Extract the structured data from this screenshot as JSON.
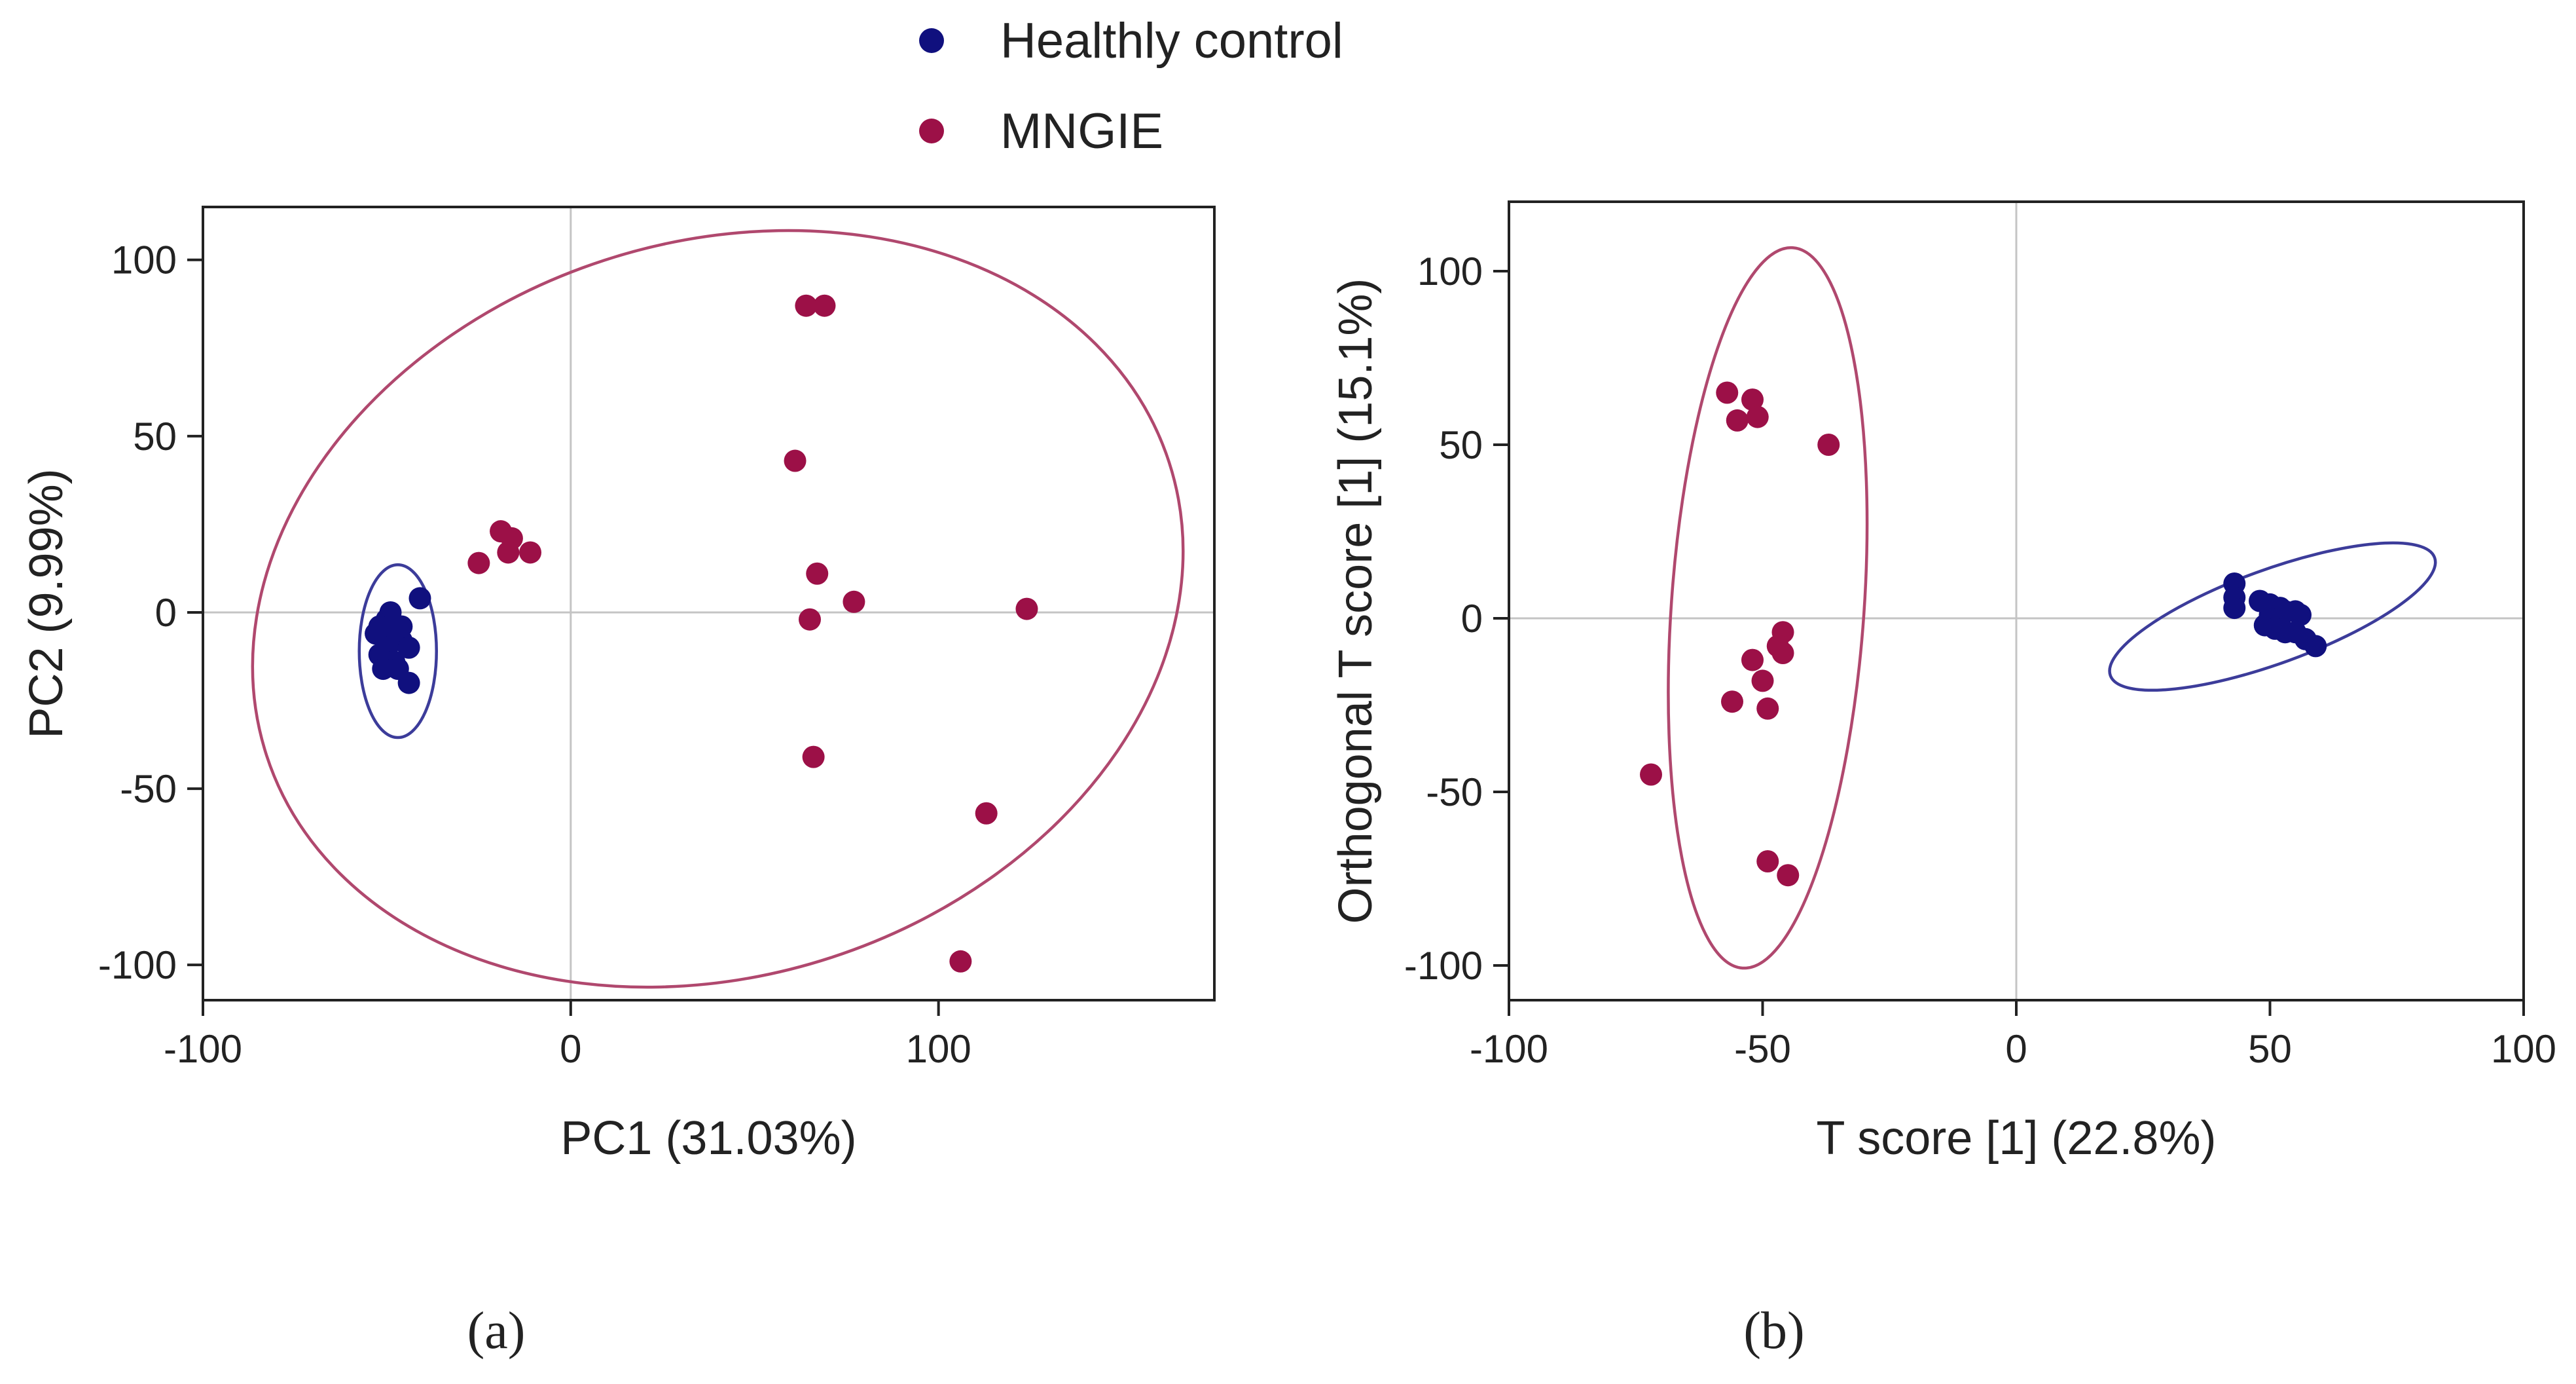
{
  "colors": {
    "healthy": "#10107e",
    "mngie": "#9c1047",
    "healthy_ellipse": "#3c3c9a",
    "mngie_ellipse": "#b0486e",
    "zero_line": "#c4c4c4",
    "frame": "#222222"
  },
  "legend": {
    "items": [
      {
        "label": "Healthly control",
        "group": "healthy"
      },
      {
        "label": "MNGIE",
        "group": "mngie"
      }
    ]
  },
  "panels": [
    {
      "label": "(a)"
    },
    {
      "label": "(b)"
    }
  ],
  "chart_data": [
    {
      "type": "scatter",
      "panel": "(a)",
      "xlabel": "PC1 (31.03%)",
      "ylabel": "PC2 (9.99%)",
      "xlim": [
        -100,
        175
      ],
      "ylim": [
        -110,
        115
      ],
      "xticks": [
        -100,
        0,
        100
      ],
      "yticks": [
        -100,
        -50,
        0,
        50,
        100
      ],
      "xtick_labels": [
        "-100",
        "0",
        "100"
      ],
      "ytick_labels": [
        "-100",
        "-50",
        "0",
        "50",
        "100"
      ],
      "series": [
        {
          "name": "Healthly control",
          "group": "healthy",
          "points": [
            [
              -50,
              -2
            ],
            [
              -48,
              -5
            ],
            [
              -53,
              -6
            ],
            [
              -46,
              -8
            ],
            [
              -50,
              -10
            ],
            [
              -44,
              -10
            ],
            [
              -52,
              -12
            ],
            [
              -48,
              -14
            ],
            [
              -51,
              -16
            ],
            [
              -47,
              -16
            ],
            [
              -44,
              -20
            ],
            [
              -41,
              4
            ],
            [
              -49,
              0
            ],
            [
              -46,
              -4
            ],
            [
              -52,
              -4
            ]
          ]
        },
        {
          "name": "MNGIE",
          "group": "mngie",
          "points": [
            [
              64,
              87
            ],
            [
              69,
              87
            ],
            [
              61,
              43
            ],
            [
              -19,
              23
            ],
            [
              -16,
              21
            ],
            [
              -11,
              17
            ],
            [
              -17,
              17
            ],
            [
              -25,
              14
            ],
            [
              67,
              11
            ],
            [
              77,
              3
            ],
            [
              124,
              1
            ],
            [
              65,
              -2
            ],
            [
              66,
              -41
            ],
            [
              113,
              -57
            ],
            [
              106,
              -99
            ]
          ]
        }
      ],
      "ellipses": [
        {
          "group": "healthy",
          "center": [
            -47,
            -11
          ],
          "semi_axes": [
            10.5,
            24.5
          ],
          "angle_deg": 0
        },
        {
          "group": "mngie",
          "center": [
            40,
            1
          ],
          "semi_axes": [
            129,
            104
          ],
          "angle_deg": -18
        }
      ]
    },
    {
      "type": "scatter",
      "panel": "(b)",
      "xlabel": "T score [1] (22.8%)",
      "ylabel": "Orthogonal T score [1] (15.1%)",
      "xlim": [
        -100,
        100
      ],
      "ylim": [
        -110,
        120
      ],
      "xticks": [
        -100,
        -50,
        0,
        50,
        100
      ],
      "yticks": [
        -100,
        -50,
        0,
        50,
        100
      ],
      "xtick_labels": [
        "-100",
        "-50",
        "0",
        "50",
        "100"
      ],
      "ytick_labels": [
        "-100",
        "-50",
        "0",
        "50",
        "100"
      ],
      "series": [
        {
          "name": "Healthly control",
          "group": "healthy",
          "points": [
            [
              43,
              10
            ],
            [
              43,
              6
            ],
            [
              43,
              3
            ],
            [
              48,
              5
            ],
            [
              50,
              4
            ],
            [
              52,
              3
            ],
            [
              53,
              2
            ],
            [
              55,
              2
            ],
            [
              56,
              1
            ],
            [
              50,
              1
            ],
            [
              52,
              0
            ],
            [
              49,
              -2
            ],
            [
              51,
              -3
            ],
            [
              53,
              -4
            ],
            [
              55,
              -4
            ],
            [
              57,
              -6
            ],
            [
              59,
              -8
            ]
          ]
        },
        {
          "name": "MNGIE",
          "group": "mngie",
          "points": [
            [
              -57,
              65
            ],
            [
              -52,
              63
            ],
            [
              -55,
              57
            ],
            [
              -51,
              58
            ],
            [
              -37,
              50
            ],
            [
              -46,
              -4
            ],
            [
              -47,
              -8
            ],
            [
              -46,
              -10
            ],
            [
              -52,
              -12
            ],
            [
              -50,
              -18
            ],
            [
              -56,
              -24
            ],
            [
              -49,
              -26
            ],
            [
              -72,
              -45
            ],
            [
              -49,
              -70
            ],
            [
              -45,
              -74
            ]
          ]
        }
      ],
      "ellipses": [
        {
          "group": "healthy",
          "center": [
            50.5,
            0.5
          ],
          "semi_axes": [
            34,
            13.5
          ],
          "angle_deg": -20
        },
        {
          "group": "mngie",
          "center": [
            -49,
            3
          ],
          "semi_axes": [
            19,
            104
          ],
          "angle_deg": 4
        }
      ]
    }
  ]
}
